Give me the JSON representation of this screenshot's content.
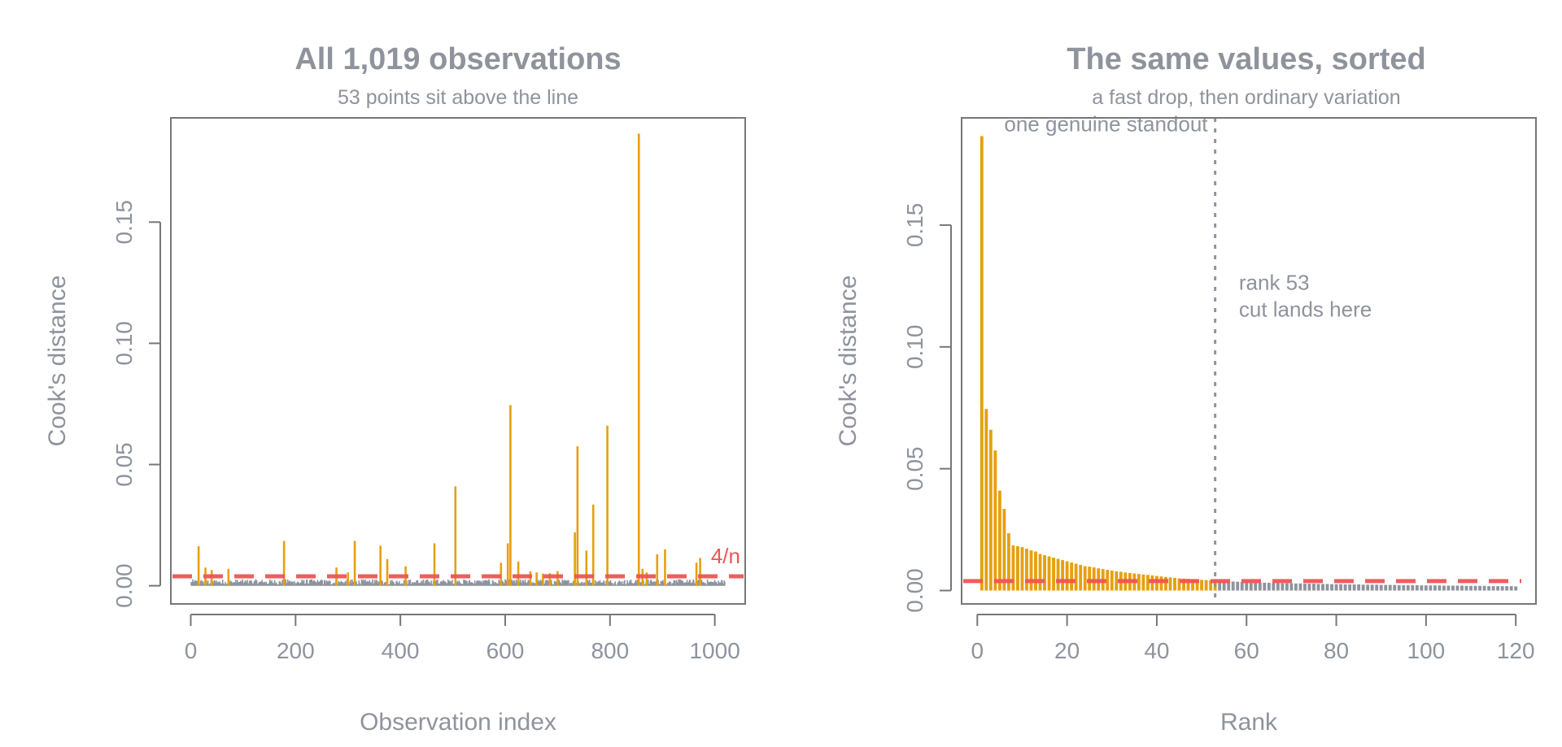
{
  "chart_data": [
    {
      "type": "bar",
      "title": "All 1,019 observations",
      "subtitle": "53 points sit above the line",
      "xlabel": "Observation index",
      "ylabel": "Cook's distance",
      "xlim": [
        -38,
        1058
      ],
      "ylim": [
        -0.0075,
        0.193
      ],
      "xticks": [
        0,
        200,
        400,
        600,
        800,
        1000
      ],
      "xtick_labels": [
        "0",
        "200",
        "400",
        "600",
        "800",
        "1000"
      ],
      "yticks": [
        0,
        0.05,
        0.1,
        0.15
      ],
      "ytick_labels": [
        "0.00",
        "0.05",
        "0.10",
        "0.15"
      ],
      "n": 1019,
      "threshold": 0.0039,
      "threshold_label": "4/n",
      "grid": false,
      "legend": "none",
      "colors": {
        "above": "#E6A00F",
        "below": "#8E939C",
        "threshold": "#EE5454",
        "text": "#8E939C",
        "axis": "#777777"
      },
      "below_level_range": [
        0.0004,
        0.0027
      ],
      "above_points": [
        {
          "x": 15,
          "y": 0.0163
        },
        {
          "x": 28,
          "y": 0.0075
        },
        {
          "x": 40,
          "y": 0.0065
        },
        {
          "x": 72,
          "y": 0.007
        },
        {
          "x": 178,
          "y": 0.0185
        },
        {
          "x": 278,
          "y": 0.0075
        },
        {
          "x": 300,
          "y": 0.0055
        },
        {
          "x": 313,
          "y": 0.0185
        },
        {
          "x": 362,
          "y": 0.0165
        },
        {
          "x": 375,
          "y": 0.011
        },
        {
          "x": 410,
          "y": 0.008
        },
        {
          "x": 465,
          "y": 0.0175
        },
        {
          "x": 505,
          "y": 0.041
        },
        {
          "x": 592,
          "y": 0.0095
        },
        {
          "x": 605,
          "y": 0.0175
        },
        {
          "x": 610,
          "y": 0.0745
        },
        {
          "x": 625,
          "y": 0.01
        },
        {
          "x": 648,
          "y": 0.006
        },
        {
          "x": 660,
          "y": 0.0055
        },
        {
          "x": 672,
          "y": 0.005
        },
        {
          "x": 685,
          "y": 0.0052
        },
        {
          "x": 700,
          "y": 0.006
        },
        {
          "x": 733,
          "y": 0.022
        },
        {
          "x": 738,
          "y": 0.0575
        },
        {
          "x": 755,
          "y": 0.0145
        },
        {
          "x": 768,
          "y": 0.0335
        },
        {
          "x": 795,
          "y": 0.066
        },
        {
          "x": 855,
          "y": 0.1865
        },
        {
          "x": 862,
          "y": 0.007
        },
        {
          "x": 870,
          "y": 0.0055
        },
        {
          "x": 890,
          "y": 0.013
        },
        {
          "x": 905,
          "y": 0.015
        },
        {
          "x": 965,
          "y": 0.0095
        },
        {
          "x": 972,
          "y": 0.0115
        }
      ]
    },
    {
      "type": "bar",
      "title": "The same values, sorted",
      "subtitle": "a fast drop, then ordinary variation",
      "xlabel": "Rank",
      "ylabel": "Cook's distance",
      "xlim": [
        -3.5,
        124.5
      ],
      "ylim": [
        -0.0055,
        0.194
      ],
      "xticks": [
        0,
        20,
        40,
        60,
        80,
        100,
        120
      ],
      "xtick_labels": [
        "0",
        "20",
        "40",
        "60",
        "80",
        "100",
        "120"
      ],
      "yticks": [
        0,
        0.05,
        0.1,
        0.15
      ],
      "ytick_labels": [
        "0.00",
        "0.05",
        "0.10",
        "0.15"
      ],
      "threshold": 0.0039,
      "cut_rank": 53,
      "grid": false,
      "legend": "none",
      "colors": {
        "above": "#E6A00F",
        "below": "#8E939C",
        "threshold": "#EE5454",
        "text": "#8E939C",
        "axis": "#777777"
      },
      "annotations": [
        {
          "text": "one genuine standout",
          "x": 6,
          "y": 0.1885
        },
        {
          "text": "rank 53",
          "x": 58.3,
          "y": 0.1235
        },
        {
          "text": "cut lands here",
          "x": 58.3,
          "y": 0.1125
        }
      ],
      "ranks": [
        1,
        2,
        3,
        4,
        5,
        6,
        7,
        8,
        9,
        10,
        11,
        12,
        13,
        14,
        15,
        16,
        17,
        18,
        19,
        20,
        21,
        22,
        23,
        24,
        25,
        26,
        27,
        28,
        29,
        30,
        31,
        32,
        33,
        34,
        35,
        36,
        37,
        38,
        39,
        40,
        41,
        42,
        43,
        44,
        45,
        46,
        47,
        48,
        49,
        50,
        51,
        52,
        53,
        54,
        55,
        56,
        57,
        58,
        59,
        60,
        61,
        62,
        63,
        64,
        65,
        66,
        67,
        68,
        69,
        70,
        71,
        72,
        73,
        74,
        75,
        76,
        77,
        78,
        79,
        80,
        81,
        82,
        83,
        84,
        85,
        86,
        87,
        88,
        89,
        90,
        91,
        92,
        93,
        94,
        95,
        96,
        97,
        98,
        99,
        100,
        101,
        102,
        103,
        104,
        105,
        106,
        107,
        108,
        109,
        110,
        111,
        112,
        113,
        114,
        115,
        116,
        117,
        118,
        119,
        120
      ],
      "values": [
        0.1865,
        0.0745,
        0.066,
        0.0575,
        0.041,
        0.0335,
        0.0235,
        0.0185,
        0.0182,
        0.0178,
        0.0172,
        0.0165,
        0.016,
        0.015,
        0.0145,
        0.014,
        0.0135,
        0.013,
        0.0125,
        0.012,
        0.0115,
        0.011,
        0.0105,
        0.01,
        0.0098,
        0.0095,
        0.0091,
        0.0088,
        0.0085,
        0.0082,
        0.0079,
        0.0077,
        0.0074,
        0.0072,
        0.007,
        0.0068,
        0.0066,
        0.0064,
        0.0062,
        0.006,
        0.0058,
        0.0056,
        0.0054,
        0.0052,
        0.005,
        0.0049,
        0.0048,
        0.0046,
        0.0045,
        0.0044,
        0.0043,
        0.0042,
        0.004,
        0.0039,
        0.0038,
        0.0037,
        0.0037,
        0.0036,
        0.0035,
        0.0035,
        0.0034,
        0.0033,
        0.0033,
        0.0032,
        0.0032,
        0.0031,
        0.0031,
        0.003,
        0.003,
        0.003,
        0.0029,
        0.0029,
        0.0028,
        0.0028,
        0.0028,
        0.0027,
        0.0027,
        0.0027,
        0.0026,
        0.0026,
        0.0026,
        0.0025,
        0.0025,
        0.0025,
        0.0025,
        0.0024,
        0.0024,
        0.0024,
        0.0024,
        0.0023,
        0.0023,
        0.0023,
        0.0023,
        0.0022,
        0.0022,
        0.0022,
        0.0022,
        0.0022,
        0.0021,
        0.0021,
        0.0021,
        0.0021,
        0.0021,
        0.002,
        0.002,
        0.002,
        0.002,
        0.002,
        0.0019,
        0.0019,
        0.0019,
        0.0019,
        0.0019,
        0.0018,
        0.0018,
        0.0018,
        0.0018,
        0.0018,
        0.0018,
        0.0017
      ]
    }
  ]
}
